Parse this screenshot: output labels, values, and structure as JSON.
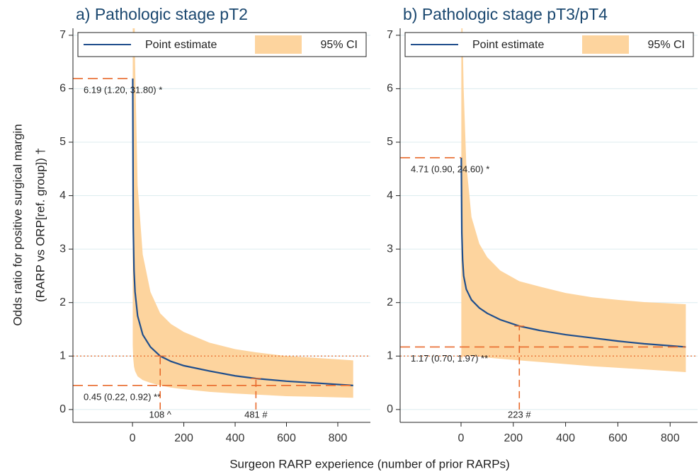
{
  "x_label": "Surgeon RARP experience (number of prior RARPs)",
  "y_label": [
    "Odds ratio for positive surgical margin",
    "(RARP vs ORP[ref. group]) †"
  ],
  "chart_data": [
    {
      "type": "line",
      "title": "a) Pathologic stage pT2",
      "x": [
        1,
        3,
        6,
        10,
        20,
        40,
        70,
        108,
        150,
        200,
        300,
        400,
        481,
        600,
        700,
        860
      ],
      "series": [
        {
          "name": "Point estimate",
          "color": "#1f4e8c",
          "values": [
            6.19,
            3.4,
            2.6,
            2.2,
            1.75,
            1.4,
            1.17,
            1.0,
            0.9,
            0.82,
            0.72,
            0.63,
            0.58,
            0.53,
            0.5,
            0.45
          ]
        }
      ],
      "band": {
        "name": "95% CI",
        "color": "#fdd49e",
        "lower": [
          1.2,
          0.95,
          0.8,
          0.72,
          0.62,
          0.55,
          0.5,
          0.45,
          0.41,
          0.38,
          0.33,
          0.3,
          0.28,
          0.25,
          0.24,
          0.22
        ],
        "upper": [
          31.8,
          12,
          8.5,
          6.5,
          4.2,
          2.9,
          2.2,
          1.8,
          1.6,
          1.45,
          1.25,
          1.13,
          1.07,
          1.0,
          0.97,
          0.92
        ]
      },
      "xlim": [
        -232,
        927
      ],
      "xticks": [
        0,
        200,
        400,
        600,
        800
      ],
      "ylim": [
        -0.24,
        7.13
      ],
      "yticks": [
        0,
        1,
        2,
        3,
        4,
        5,
        6,
        7
      ],
      "reference_line": 1,
      "grid": true,
      "marker_color": "#e8692b",
      "hmarks": [
        {
          "value": 6.19,
          "x_end": 0,
          "label": "6.19 (1.20, 31.80) *"
        },
        {
          "value": 0.45,
          "x_end": 860,
          "label": "0.45 (0.22, 0.92) **"
        }
      ],
      "vmarks": [
        {
          "value": 108,
          "top": 1.0,
          "label": "108 ^"
        },
        {
          "value": 481,
          "top": 0.58,
          "label": "481 #"
        }
      ]
    },
    {
      "type": "line",
      "title": "b) Pathologic  stage  pT3/pT4",
      "x": [
        1,
        3,
        6,
        10,
        20,
        40,
        70,
        100,
        150,
        223,
        300,
        400,
        500,
        600,
        700,
        860
      ],
      "series": [
        {
          "name": "Point estimate",
          "color": "#1f4e8c",
          "values": [
            4.71,
            3.3,
            2.8,
            2.5,
            2.25,
            2.05,
            1.9,
            1.8,
            1.68,
            1.56,
            1.48,
            1.4,
            1.34,
            1.28,
            1.23,
            1.17
          ]
        }
      ],
      "band": {
        "name": "95% CI",
        "color": "#fdd49e",
        "lower": [
          0.9,
          0.95,
          0.98,
          1.0,
          1.0,
          1.0,
          0.99,
          0.97,
          0.95,
          0.92,
          0.89,
          0.85,
          0.81,
          0.78,
          0.75,
          0.7
        ],
        "upper": [
          24.6,
          9,
          7,
          6,
          4.6,
          3.6,
          3.1,
          2.85,
          2.6,
          2.4,
          2.3,
          2.18,
          2.1,
          2.05,
          2.01,
          1.97
        ]
      },
      "xlim": [
        -233,
        905
      ],
      "xticks": [
        0,
        200,
        400,
        600,
        800
      ],
      "ylim": [
        -0.24,
        7.13
      ],
      "yticks": [
        0,
        1,
        2,
        3,
        4,
        5,
        6,
        7
      ],
      "reference_line": 1,
      "grid": true,
      "marker_color": "#e8692b",
      "hmarks": [
        {
          "value": 4.71,
          "x_end": 0,
          "label": "4.71 (0.90, 24.60) *"
        },
        {
          "value": 1.17,
          "x_end": 860,
          "label": "1.17 (0.70, 1.97) **"
        }
      ],
      "vmarks": [
        {
          "value": 223,
          "top": 1.56,
          "label": "223 #"
        }
      ]
    }
  ]
}
